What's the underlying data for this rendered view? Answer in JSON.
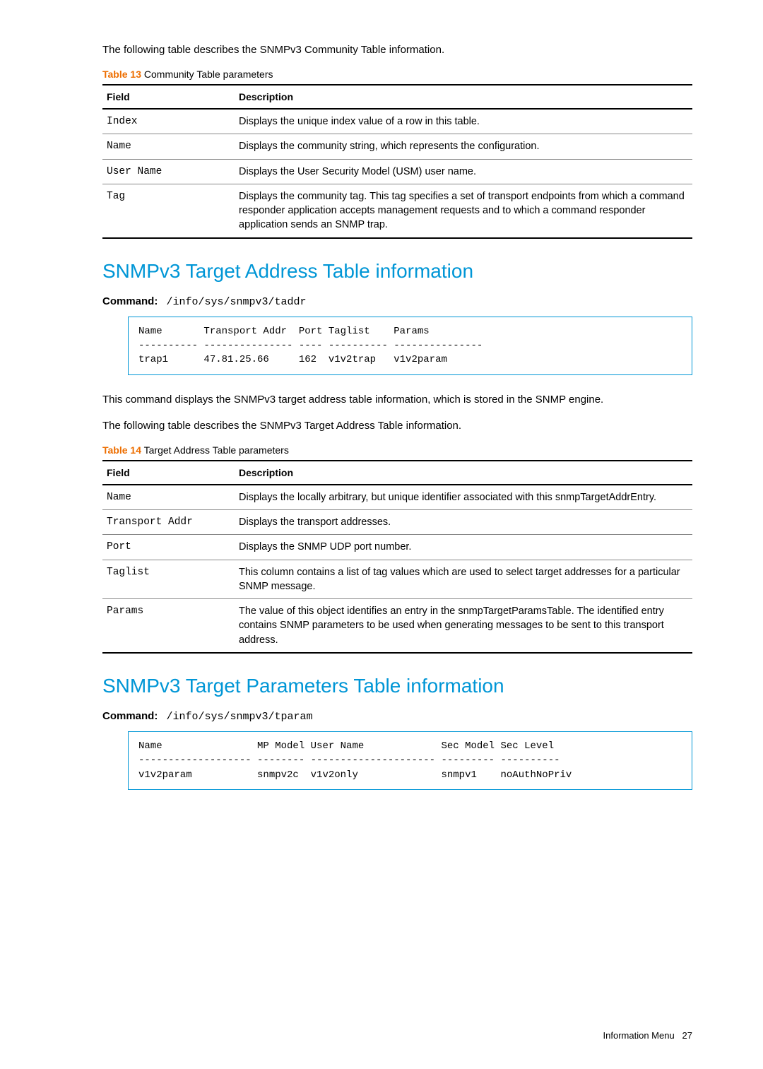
{
  "colors": {
    "accent_orange": "#ed6e00",
    "accent_blue": "#0096d6",
    "text": "#000000",
    "border_gray": "#888888",
    "background": "#ffffff"
  },
  "typography": {
    "body_font": "Arial, Helvetica, sans-serif",
    "mono_font": "Courier New, monospace",
    "body_size_pt": 11,
    "heading_size_pt": 20
  },
  "intro_text_1": "The following table describes the SNMPv3 Community Table information.",
  "table13": {
    "caption_num": "Table 13",
    "caption_text": "Community Table parameters",
    "columns": [
      "Field",
      "Description"
    ],
    "col_widths": [
      "175px",
      "auto"
    ],
    "rows": [
      [
        "Index",
        "Displays the unique index value of a row in this table."
      ],
      [
        "Name",
        "Displays the community string, which represents the configuration."
      ],
      [
        "User Name",
        "Displays the User Security Model (USM) user name."
      ],
      [
        "Tag",
        "Displays the community tag. This tag specifies a set of transport endpoints from which a command responder application accepts management requests and to which a command responder application sends an SNMP trap."
      ]
    ]
  },
  "section1": {
    "heading": "SNMPv3 Target Address Table information",
    "command_label": "Command:",
    "command_path": "/info/sys/snmpv3/taddr",
    "output": "Name       Transport Addr  Port Taglist    Params\n---------- --------------- ---- ---------- ---------------\ntrap1      47.81.25.66     162  v1v2trap   v1v2param",
    "after_text_1": "This command displays the SNMPv3 target address table information, which is stored in the SNMP engine.",
    "after_text_2": "The following table describes the SNMPv3 Target Address Table information."
  },
  "table14": {
    "caption_num": "Table 14",
    "caption_text": "Target Address Table parameters",
    "columns": [
      "Field",
      "Description"
    ],
    "col_widths": [
      "175px",
      "auto"
    ],
    "rows": [
      [
        "Name",
        "Displays the locally arbitrary, but unique identifier associated with this snmpTargetAddrEntry."
      ],
      [
        "Transport Addr",
        "Displays the transport addresses."
      ],
      [
        "Port",
        "Displays the SNMP UDP port number."
      ],
      [
        "Taglist",
        "This column contains a list of tag values which are used to select target addresses for a particular SNMP message."
      ],
      [
        "Params",
        "The value of this object identifies an entry in the snmpTargetParamsTable. The identified entry contains SNMP parameters to be used when generating messages to be sent to this transport address."
      ]
    ]
  },
  "section2": {
    "heading": "SNMPv3 Target Parameters Table information",
    "command_label": "Command:",
    "command_path": "/info/sys/snmpv3/tparam",
    "output": "Name                MP Model User Name             Sec Model Sec Level\n------------------- -------- --------------------- --------- ----------\nv1v2param           snmpv2c  v1v2only              snmpv1    noAuthNoPriv"
  },
  "footer": {
    "label": "Information Menu",
    "page": "27"
  }
}
